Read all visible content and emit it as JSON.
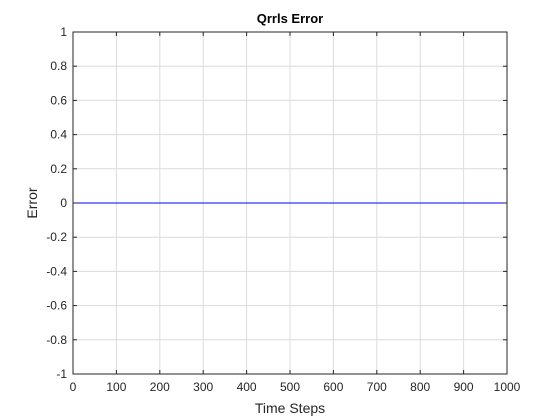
{
  "chart_data": {
    "type": "line",
    "title": "Qrrls Error",
    "xlabel": "Time Steps",
    "ylabel": "Error",
    "xlim": [
      0,
      1000
    ],
    "ylim": [
      -1,
      1
    ],
    "xticks": [
      0,
      100,
      200,
      300,
      400,
      500,
      600,
      700,
      800,
      900,
      1000
    ],
    "yticks": [
      -1,
      -0.8,
      -0.6,
      -0.4,
      -0.2,
      0,
      0.2,
      0.4,
      0.6,
      0.8,
      1
    ],
    "xtick_labels": [
      "0",
      "100",
      "200",
      "300",
      "400",
      "500",
      "600",
      "700",
      "800",
      "900",
      "1000"
    ],
    "ytick_labels": [
      "-1",
      "-0.8",
      "-0.6",
      "-0.4",
      "-0.2",
      "0",
      "0.2",
      "0.4",
      "0.6",
      "0.8",
      "1"
    ],
    "grid": true,
    "series": [
      {
        "color": "#0000ff",
        "x": [
          0,
          100,
          200,
          300,
          400,
          500,
          600,
          700,
          800,
          900,
          1000
        ],
        "y": [
          0,
          0,
          0,
          0,
          0,
          0,
          0,
          0,
          0,
          0,
          0
        ]
      }
    ]
  }
}
